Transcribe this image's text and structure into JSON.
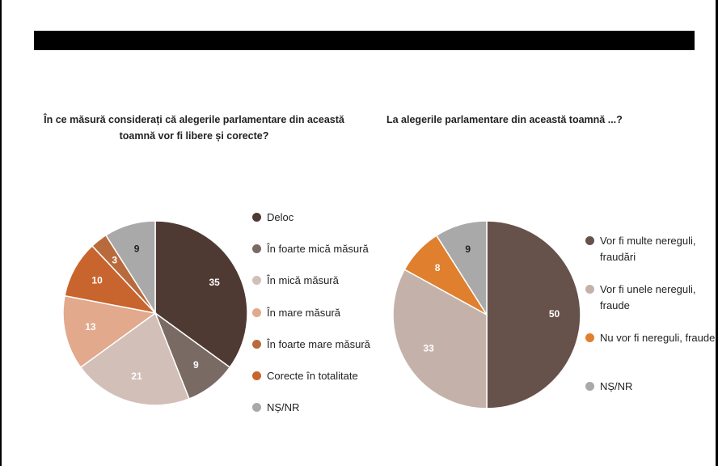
{
  "chart_data": [
    {
      "type": "pie",
      "title": "În ce măsură considerați că alegerile parlamentare din această toamnă vor fi libere și corecte?",
      "categories": [
        "Deloc",
        "În foarte mică măsură",
        "În mică măsură",
        "În mare măsură",
        "În foarte mare măsură",
        "Corecte în totalitate",
        "NȘ/NR"
      ],
      "values": [
        35,
        9,
        21,
        13,
        3,
        10,
        9
      ],
      "slice_order": [
        0,
        1,
        2,
        3,
        5,
        4,
        6
      ],
      "label_colors": [
        "#ffffff",
        "#ffffff",
        "#ffffff",
        "#ffffff",
        "#ffffff",
        "#ffffff",
        "#222222"
      ],
      "legend": [
        {
          "label": "Deloc",
          "color": "#4f3a33"
        },
        {
          "label": "În foarte mică măsură",
          "color": "#7a6a64"
        },
        {
          "label": "În mică măsură",
          "color": "#d2bfb8"
        },
        {
          "label": "În mare măsură",
          "color": "#e2a98c"
        },
        {
          "label": "În foarte mare măsură",
          "color": "#b96a3c"
        },
        {
          "label": "Corecte în totalitate",
          "color": "#c8642d"
        },
        {
          "label": "NȘ/NR",
          "color": "#a9a9a9"
        }
      ],
      "legend_position": "right"
    },
    {
      "type": "pie",
      "title": "La alegerile parlamentare din această toamnă ...?",
      "categories": [
        "Vor fi multe nereguli, fraudări",
        "Vor fi unele nereguli, fraude",
        "Nu vor fi nereguli, fraude",
        "NȘ/NR"
      ],
      "values": [
        50,
        33,
        8,
        9
      ],
      "slice_order": [
        0,
        1,
        2,
        3
      ],
      "label_colors": [
        "#ffffff",
        "#ffffff",
        "#ffffff",
        "#222222"
      ],
      "legend": [
        {
          "label": "Vor fi multe nereguli, fraudări",
          "color": "#67524b"
        },
        {
          "label": "Vor fi unele nereguli, fraude",
          "color": "#c4b2aa"
        },
        {
          "label": "Nu vor fi nereguli, fraude",
          "color": "#e07f2d"
        },
        {
          "label": "NȘ/NR",
          "color": "#a9a9a9"
        }
      ],
      "legend_position": "right"
    }
  ]
}
